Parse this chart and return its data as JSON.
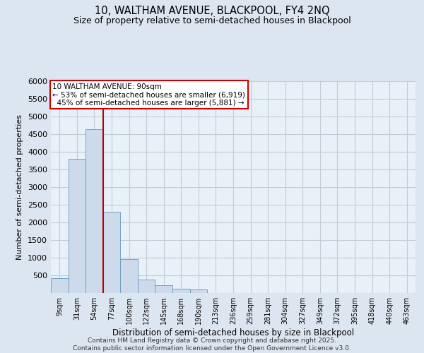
{
  "title_line1": "10, WALTHAM AVENUE, BLACKPOOL, FY4 2NQ",
  "title_line2": "Size of property relative to semi-detached houses in Blackpool",
  "xlabel": "Distribution of semi-detached houses by size in Blackpool",
  "ylabel": "Number of semi-detached properties",
  "categories": [
    "9sqm",
    "31sqm",
    "54sqm",
    "77sqm",
    "100sqm",
    "122sqm",
    "145sqm",
    "168sqm",
    "190sqm",
    "213sqm",
    "236sqm",
    "259sqm",
    "281sqm",
    "304sqm",
    "327sqm",
    "349sqm",
    "372sqm",
    "395sqm",
    "418sqm",
    "440sqm",
    "463sqm"
  ],
  "values": [
    430,
    3800,
    4650,
    2300,
    970,
    390,
    230,
    130,
    110,
    0,
    0,
    0,
    0,
    0,
    0,
    0,
    0,
    0,
    0,
    0,
    0
  ],
  "bar_color": "#cddaeb",
  "bar_edge_color": "#6699bb",
  "vline_color": "#bb0000",
  "vline_x": 2.5,
  "annotation_title": "10 WALTHAM AVENUE: 90sqm",
  "annotation_line1": "← 53% of semi-detached houses are smaller (6,919)",
  "annotation_line2": "  45% of semi-detached houses are larger (5,881) →",
  "annotation_box_color": "#cc0000",
  "ylim": [
    0,
    6000
  ],
  "yticks": [
    0,
    500,
    1000,
    1500,
    2000,
    2500,
    3000,
    3500,
    4000,
    4500,
    5000,
    5500,
    6000
  ],
  "footer_line1": "Contains HM Land Registry data © Crown copyright and database right 2025.",
  "footer_line2": "Contains public sector information licensed under the Open Government Licence v3.0.",
  "bg_color": "#dce6f0",
  "plot_bg_color": "#e8f0f8",
  "grid_color": "#c0ccd8"
}
